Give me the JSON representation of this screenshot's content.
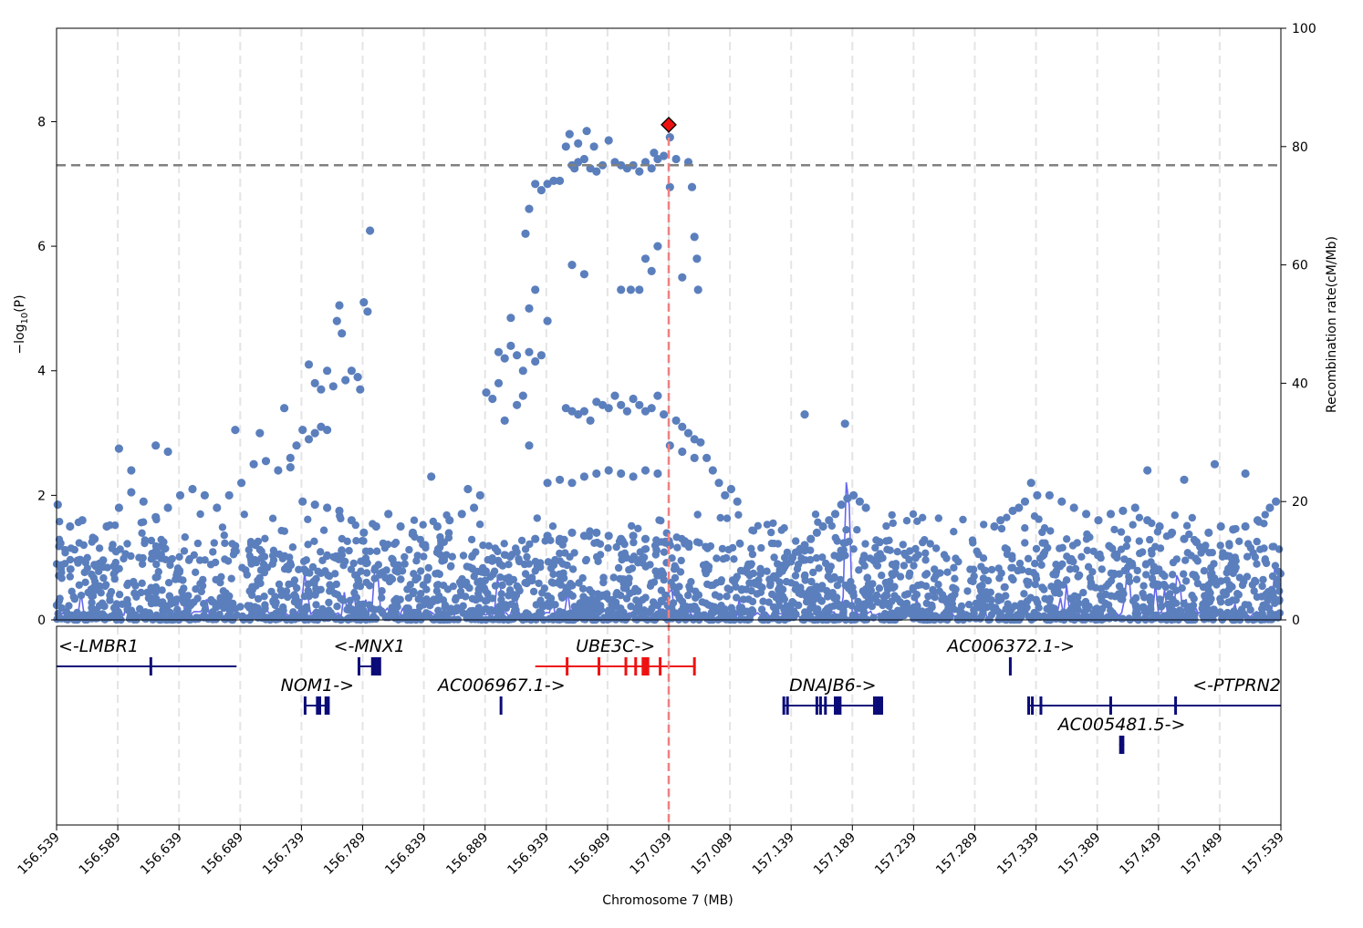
{
  "chart_data": {
    "type": "scatter",
    "subtype": "regional-association-plot",
    "xlabel": "Chromosome 7 (MB)",
    "ylabel_left": "−log10(P)",
    "ylabel_right": "Recombination rate(cM/Mb)",
    "xlim": [
      156.539,
      157.539
    ],
    "ylim_left": [
      0,
      9.5
    ],
    "ylim_right": [
      0,
      100
    ],
    "x_ticks": [
      "156.539",
      "156.589",
      "156.639",
      "156.689",
      "156.739",
      "156.789",
      "156.839",
      "156.889",
      "156.939",
      "156.989",
      "157.039",
      "157.089",
      "157.139",
      "157.189",
      "157.239",
      "157.289",
      "157.339",
      "157.389",
      "157.439",
      "157.489",
      "157.539"
    ],
    "y_ticks_left": [
      "0",
      "2",
      "4",
      "6",
      "8"
    ],
    "y_ticks_right": [
      "0",
      "20",
      "40",
      "60",
      "80",
      "100"
    ],
    "grid": "vertical dashed at x ticks",
    "significance_threshold": 7.3,
    "lead_variant": {
      "x": 157.039,
      "y": 7.95,
      "marker": "diamond",
      "color": "#e00000"
    },
    "colors": {
      "points": "#5b7fbd",
      "recombination": "#5555ee",
      "gene": "#0b0b78",
      "lead_gene": "#ee1111",
      "lead_line": "#f08080",
      "threshold": "#808080"
    },
    "points": [
      [
        156.94,
        7.0
      ],
      [
        156.95,
        7.05
      ],
      [
        156.955,
        7.6
      ],
      [
        156.96,
        7.3
      ],
      [
        156.962,
        7.25
      ],
      [
        156.965,
        7.35
      ],
      [
        156.97,
        7.4
      ],
      [
        156.975,
        7.25
      ],
      [
        156.98,
        7.2
      ],
      [
        156.985,
        7.3
      ],
      [
        156.99,
        7.7
      ],
      [
        156.995,
        7.35
      ],
      [
        157.0,
        7.3
      ],
      [
        157.005,
        7.25
      ],
      [
        157.01,
        7.3
      ],
      [
        157.015,
        7.2
      ],
      [
        157.02,
        7.35
      ],
      [
        157.025,
        7.25
      ],
      [
        157.03,
        7.4
      ],
      [
        157.035,
        7.45
      ],
      [
        157.04,
        7.75
      ],
      [
        157.045,
        7.4
      ],
      [
        157.055,
        7.35
      ],
      [
        156.958,
        7.8
      ],
      [
        156.972,
        7.85
      ],
      [
        156.965,
        7.65
      ],
      [
        156.978,
        7.6
      ],
      [
        157.027,
        7.5
      ],
      [
        156.93,
        7.0
      ],
      [
        156.935,
        6.9
      ],
      [
        156.925,
        6.6
      ],
      [
        156.922,
        6.2
      ],
      [
        156.945,
        7.05
      ],
      [
        157.04,
        6.95
      ],
      [
        157.058,
        6.95
      ],
      [
        157.06,
        6.15
      ],
      [
        157.062,
        5.8
      ],
      [
        157.03,
        6.0
      ],
      [
        157.025,
        5.6
      ],
      [
        157.02,
        5.8
      ],
      [
        156.96,
        5.7
      ],
      [
        156.97,
        5.55
      ],
      [
        157.0,
        5.3
      ],
      [
        157.008,
        5.3
      ],
      [
        157.015,
        5.3
      ],
      [
        157.05,
        5.5
      ],
      [
        157.063,
        5.3
      ],
      [
        156.93,
        5.3
      ],
      [
        156.925,
        5.0
      ],
      [
        156.94,
        4.8
      ],
      [
        156.91,
        4.85
      ],
      [
        156.795,
        6.25
      ],
      [
        156.79,
        5.1
      ],
      [
        156.793,
        4.95
      ],
      [
        156.77,
        5.05
      ],
      [
        156.768,
        4.8
      ],
      [
        156.772,
        4.6
      ],
      [
        156.78,
        4.0
      ],
      [
        156.785,
        3.9
      ],
      [
        156.775,
        3.85
      ],
      [
        156.765,
        3.75
      ],
      [
        156.76,
        4.0
      ],
      [
        156.755,
        3.7
      ],
      [
        156.75,
        3.8
      ],
      [
        156.745,
        4.1
      ],
      [
        156.787,
        3.7
      ],
      [
        156.76,
        3.05
      ],
      [
        156.755,
        3.1
      ],
      [
        156.75,
        3.0
      ],
      [
        156.745,
        2.9
      ],
      [
        156.74,
        3.05
      ],
      [
        156.735,
        2.8
      ],
      [
        156.73,
        2.6
      ],
      [
        156.725,
        3.4
      ],
      [
        156.9,
        4.3
      ],
      [
        156.905,
        4.2
      ],
      [
        156.91,
        4.4
      ],
      [
        156.915,
        4.25
      ],
      [
        156.92,
        4.0
      ],
      [
        156.925,
        4.3
      ],
      [
        156.93,
        4.15
      ],
      [
        156.935,
        4.25
      ],
      [
        156.9,
        3.8
      ],
      [
        156.895,
        3.55
      ],
      [
        156.89,
        3.65
      ],
      [
        156.905,
        3.2
      ],
      [
        156.915,
        3.45
      ],
      [
        156.92,
        3.6
      ],
      [
        156.925,
        2.8
      ],
      [
        156.955,
        3.4
      ],
      [
        156.96,
        3.35
      ],
      [
        156.965,
        3.3
      ],
      [
        156.97,
        3.35
      ],
      [
        156.975,
        3.2
      ],
      [
        156.98,
        3.5
      ],
      [
        156.985,
        3.45
      ],
      [
        156.99,
        3.4
      ],
      [
        156.995,
        3.6
      ],
      [
        157.0,
        3.45
      ],
      [
        157.005,
        3.35
      ],
      [
        157.01,
        3.55
      ],
      [
        157.015,
        3.45
      ],
      [
        157.02,
        3.35
      ],
      [
        157.025,
        3.4
      ],
      [
        157.03,
        3.6
      ],
      [
        157.035,
        3.3
      ],
      [
        157.045,
        3.2
      ],
      [
        157.05,
        3.1
      ],
      [
        157.055,
        3.0
      ],
      [
        157.06,
        2.9
      ],
      [
        157.065,
        2.85
      ],
      [
        157.07,
        2.6
      ],
      [
        157.075,
        2.4
      ],
      [
        157.08,
        2.2
      ],
      [
        157.085,
        2.0
      ],
      [
        157.09,
        2.1
      ],
      [
        157.095,
        1.9
      ],
      [
        156.94,
        2.2
      ],
      [
        156.95,
        2.25
      ],
      [
        156.96,
        2.2
      ],
      [
        156.97,
        2.3
      ],
      [
        156.98,
        2.35
      ],
      [
        156.99,
        2.4
      ],
      [
        157.0,
        2.35
      ],
      [
        157.01,
        2.3
      ],
      [
        157.02,
        2.4
      ],
      [
        157.03,
        2.35
      ],
      [
        157.04,
        2.8
      ],
      [
        157.05,
        2.7
      ],
      [
        157.06,
        2.6
      ],
      [
        156.93,
        1.3
      ],
      [
        156.94,
        1.35
      ],
      [
        156.95,
        1.3
      ],
      [
        156.96,
        1.4
      ],
      [
        156.97,
        1.35
      ],
      [
        156.98,
        1.4
      ],
      [
        156.99,
        1.35
      ],
      [
        157.0,
        1.3
      ],
      [
        157.01,
        1.35
      ],
      [
        157.02,
        1.3
      ],
      [
        157.03,
        1.25
      ],
      [
        157.04,
        1.2
      ],
      [
        157.19,
        2.0
      ],
      [
        157.185,
        1.95
      ],
      [
        157.18,
        1.85
      ],
      [
        157.175,
        1.7
      ],
      [
        157.17,
        1.6
      ],
      [
        157.165,
        1.5
      ],
      [
        157.16,
        1.4
      ],
      [
        157.155,
        1.3
      ],
      [
        157.15,
        1.2
      ],
      [
        157.145,
        1.1
      ],
      [
        157.14,
        1.0
      ],
      [
        157.135,
        0.9
      ],
      [
        157.13,
        0.8
      ],
      [
        157.125,
        0.7
      ],
      [
        157.195,
        1.9
      ],
      [
        157.2,
        1.8
      ],
      [
        157.183,
        3.15
      ],
      [
        157.15,
        3.3
      ],
      [
        157.33,
        1.9
      ],
      [
        157.325,
        1.8
      ],
      [
        157.32,
        1.75
      ],
      [
        157.31,
        1.6
      ],
      [
        157.305,
        1.5
      ],
      [
        157.34,
        2.0
      ],
      [
        157.35,
        2.0
      ],
      [
        157.36,
        1.9
      ],
      [
        157.37,
        1.8
      ],
      [
        157.38,
        1.7
      ],
      [
        157.39,
        1.6
      ],
      [
        157.4,
        1.7
      ],
      [
        157.41,
        1.75
      ],
      [
        157.42,
        1.8
      ],
      [
        157.43,
        1.6
      ],
      [
        157.44,
        1.5
      ],
      [
        157.45,
        1.4
      ],
      [
        157.46,
        1.3
      ],
      [
        157.47,
        1.25
      ],
      [
        157.48,
        1.4
      ],
      [
        157.49,
        1.5
      ],
      [
        157.5,
        1.45
      ],
      [
        157.51,
        1.5
      ],
      [
        157.52,
        1.6
      ],
      [
        157.53,
        1.8
      ],
      [
        157.535,
        1.9
      ],
      [
        157.43,
        2.4
      ],
      [
        157.46,
        2.25
      ],
      [
        157.485,
        2.5
      ],
      [
        157.51,
        2.35
      ],
      [
        157.335,
        2.2
      ],
      [
        156.54,
        1.85
      ],
      [
        156.55,
        1.5
      ],
      [
        156.56,
        1.6
      ],
      [
        156.57,
        1.3
      ],
      [
        156.58,
        1.5
      ],
      [
        156.59,
        1.8
      ],
      [
        156.6,
        2.05
      ],
      [
        156.61,
        1.9
      ],
      [
        156.62,
        1.65
      ],
      [
        156.63,
        1.8
      ],
      [
        156.64,
        2.0
      ],
      [
        156.65,
        2.1
      ],
      [
        156.66,
        2.0
      ],
      [
        156.67,
        1.8
      ],
      [
        156.68,
        2.0
      ],
      [
        156.69,
        2.2
      ],
      [
        156.7,
        2.5
      ],
      [
        156.71,
        2.55
      ],
      [
        156.72,
        2.4
      ],
      [
        156.73,
        2.45
      ],
      [
        156.6,
        2.4
      ],
      [
        156.59,
        2.75
      ],
      [
        156.62,
        2.8
      ],
      [
        156.63,
        2.7
      ],
      [
        156.685,
        3.05
      ],
      [
        156.705,
        3.0
      ],
      [
        156.74,
        1.9
      ],
      [
        156.75,
        1.85
      ],
      [
        156.76,
        1.8
      ],
      [
        156.77,
        1.75
      ],
      [
        156.78,
        1.6
      ],
      [
        156.79,
        1.4
      ],
      [
        156.8,
        1.5
      ],
      [
        156.81,
        1.7
      ],
      [
        156.82,
        1.5
      ],
      [
        156.83,
        1.4
      ],
      [
        156.84,
        1.2
      ],
      [
        156.85,
        1.5
      ],
      [
        156.86,
        1.6
      ],
      [
        156.87,
        1.7
      ],
      [
        156.88,
        1.8
      ],
      [
        156.885,
        2.0
      ],
      [
        156.875,
        2.1
      ],
      [
        156.845,
        2.3
      ]
    ],
    "recombination_rate_peaks": [
      {
        "x": 157.185,
        "rate": 31
      },
      {
        "x": 156.8,
        "rate": 12
      },
      {
        "x": 156.742,
        "rate": 9
      },
      {
        "x": 156.9,
        "rate": 9
      },
      {
        "x": 157.455,
        "rate": 10
      },
      {
        "x": 157.535,
        "rate": 12
      },
      {
        "x": 157.414,
        "rate": 10
      }
    ],
    "genes": [
      {
        "name": "<-LMBR1",
        "start": 156.539,
        "end": 156.686,
        "row": 0,
        "exons": [
          156.616
        ],
        "lead": false
      },
      {
        "name": "<-MNX1",
        "start": 156.786,
        "end": 156.803,
        "row": 0,
        "exons": [
          156.786,
          156.797,
          156.799,
          156.801,
          156.803
        ],
        "lead": false
      },
      {
        "name": "UBE3C->",
        "start": 156.93,
        "end": 157.061,
        "row": 0,
        "exons": [
          156.956,
          156.982,
          157.004,
          157.012,
          157.018,
          157.02,
          157.022,
          157.032,
          157.06
        ],
        "lead": true
      },
      {
        "name": "AC006372.1->",
        "start": 157.318,
        "end": 157.319,
        "row": 0,
        "exons": [
          157.318
        ],
        "lead": false
      },
      {
        "name": "NOM1->",
        "start": 156.742,
        "end": 156.762,
        "row": 1,
        "exons": [
          156.742,
          156.752,
          156.754,
          156.759,
          156.761
        ],
        "lead": false
      },
      {
        "name": "AC006967.1->",
        "start": 156.902,
        "end": 156.903,
        "row": 1,
        "exons": [
          156.902
        ],
        "lead": false
      },
      {
        "name": "DNAJB6->",
        "start": 157.132,
        "end": 157.214,
        "row": 1,
        "exons": [
          157.133,
          157.136,
          157.16,
          157.163,
          157.167,
          157.175,
          157.177,
          157.179,
          157.207,
          157.209,
          157.211,
          157.213
        ],
        "lead": false
      },
      {
        "name": "<-PTPRN2",
        "start": 157.332,
        "end": 157.539,
        "row": 1,
        "exons": [
          157.333,
          157.336,
          157.343,
          157.4,
          157.453
        ],
        "lead": false
      },
      {
        "name": "AC005481.5->",
        "start": 157.407,
        "end": 157.411,
        "row": 2,
        "exons": [
          157.408,
          157.41
        ],
        "lead": false
      }
    ]
  }
}
